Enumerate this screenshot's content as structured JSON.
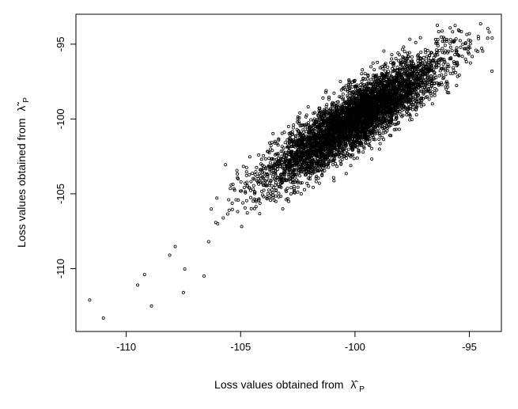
{
  "chart_data": {
    "type": "scatter",
    "title": "",
    "xlabel": "Loss values obtained from",
    "xlabel_symbol": "λ̂",
    "xlabel_subscript": "P",
    "ylabel": "Loss values obtained from",
    "ylabel_symbol": "λ̃",
    "ylabel_subscript": "P",
    "xlim": [
      -112.2,
      -93.6
    ],
    "ylim": [
      -114.2,
      -93.0
    ],
    "x_ticks": [
      -110,
      -105,
      -100,
      -95
    ],
    "x_tick_labels": [
      "-110",
      "-105",
      "-100",
      "-95"
    ],
    "y_ticks": [
      -95,
      -100,
      -105,
      -110
    ],
    "y_tick_labels": [
      "-95",
      "-100",
      "-105",
      "-110"
    ],
    "grid": false,
    "box": true,
    "marker": "open-circle",
    "point_color": "#000000",
    "n_points": 5000,
    "point_cloud": {
      "distribution": "bivariate normal",
      "x_mean": -100.0,
      "y_mean": -100.0,
      "x_sd": 1.9,
      "y_sd": 2.1,
      "correlation": 0.88
    },
    "x": [
      -111.6,
      -111.0,
      -109.5,
      -109.2,
      -108.9,
      -108.1,
      -107.5,
      -106.6,
      -106.4,
      -106.0,
      -105.5,
      -105.2,
      -104.8,
      -96.2,
      -95.9,
      -95.2,
      -95.0,
      -94.2
    ],
    "y": [
      -112.1,
      -113.3,
      -111.1,
      -110.4,
      -112.5,
      -109.1,
      -111.6,
      -110.5,
      -108.2,
      -107.0,
      -106.1,
      -105.4,
      -104.3,
      -97.7,
      -96.5,
      -95.3,
      -94.3,
      -94.6
    ]
  }
}
